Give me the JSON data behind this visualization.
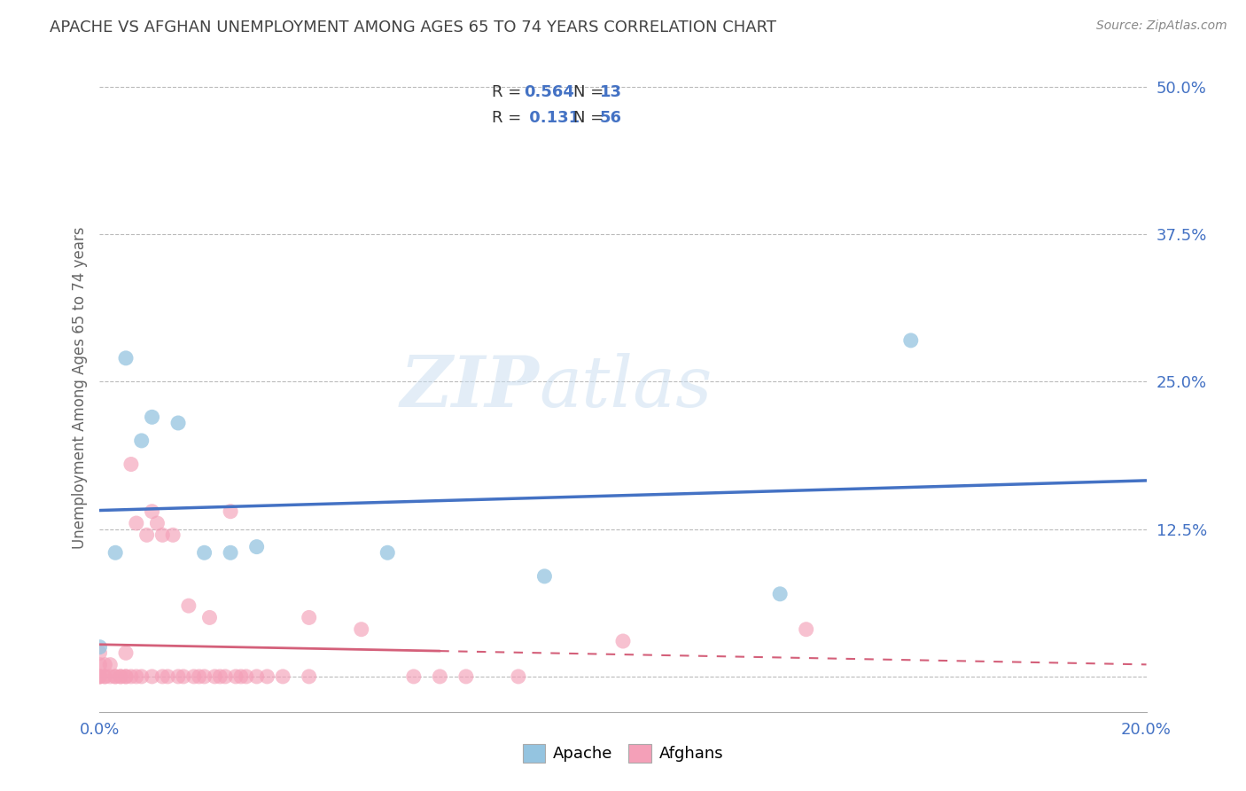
{
  "title": "APACHE VS AFGHAN UNEMPLOYMENT AMONG AGES 65 TO 74 YEARS CORRELATION CHART",
  "source": "Source: ZipAtlas.com",
  "ylabel": "Unemployment Among Ages 65 to 74 years",
  "xlim": [
    0.0,
    0.2
  ],
  "ylim": [
    -0.03,
    0.52
  ],
  "xticks": [
    0.0,
    0.05,
    0.1,
    0.15,
    0.2
  ],
  "yticks": [
    0.0,
    0.125,
    0.25,
    0.375,
    0.5
  ],
  "apache_color": "#94c4e0",
  "afghan_color": "#f4a0b8",
  "apache_line_color": "#4472c4",
  "afghan_line_color": "#d4607a",
  "apache_R": "0.564",
  "apache_N": "13",
  "afghan_R": "0.131",
  "afghan_N": "56",
  "watermark_text": "ZIPatlas",
  "background_color": "#ffffff",
  "grid_color": "#bbbbbb",
  "tick_label_color": "#4472c4",
  "title_color": "#444444",
  "source_color": "#888888",
  "apache_x": [
    0.0,
    0.003,
    0.005,
    0.008,
    0.01,
    0.015,
    0.02,
    0.025,
    0.03,
    0.055,
    0.085,
    0.13,
    0.155
  ],
  "apache_y": [
    0.025,
    0.105,
    0.27,
    0.2,
    0.22,
    0.215,
    0.105,
    0.105,
    0.11,
    0.105,
    0.085,
    0.07,
    0.285
  ],
  "afghan_x": [
    0.0,
    0.0,
    0.0,
    0.0,
    0.0,
    0.001,
    0.001,
    0.001,
    0.002,
    0.002,
    0.003,
    0.003,
    0.004,
    0.004,
    0.005,
    0.005,
    0.005,
    0.006,
    0.006,
    0.007,
    0.007,
    0.008,
    0.009,
    0.01,
    0.01,
    0.011,
    0.012,
    0.012,
    0.013,
    0.014,
    0.015,
    0.016,
    0.017,
    0.018,
    0.019,
    0.02,
    0.021,
    0.022,
    0.023,
    0.024,
    0.025,
    0.026,
    0.027,
    0.028,
    0.03,
    0.032,
    0.035,
    0.04,
    0.04,
    0.05,
    0.06,
    0.065,
    0.07,
    0.08,
    0.1,
    0.135
  ],
  "afghan_y": [
    0.0,
    0.0,
    0.0,
    0.01,
    0.02,
    0.0,
    0.0,
    0.01,
    0.0,
    0.01,
    0.0,
    0.0,
    0.0,
    0.0,
    0.0,
    0.02,
    0.0,
    0.18,
    0.0,
    0.13,
    0.0,
    0.0,
    0.12,
    0.14,
    0.0,
    0.13,
    0.0,
    0.12,
    0.0,
    0.12,
    0.0,
    0.0,
    0.06,
    0.0,
    0.0,
    0.0,
    0.05,
    0.0,
    0.0,
    0.0,
    0.14,
    0.0,
    0.0,
    0.0,
    0.0,
    0.0,
    0.0,
    0.05,
    0.0,
    0.04,
    0.0,
    0.0,
    0.0,
    0.0,
    0.03,
    0.04
  ]
}
